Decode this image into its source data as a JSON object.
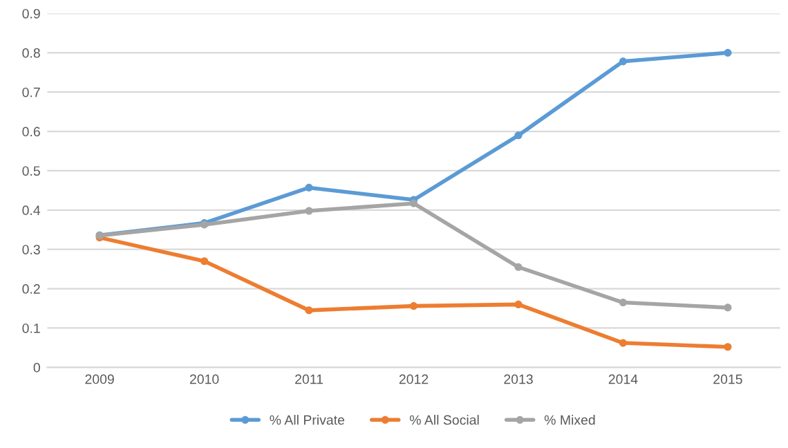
{
  "chart_data": {
    "type": "line",
    "categories": [
      "2009",
      "2010",
      "2011",
      "2012",
      "2013",
      "2014",
      "2015"
    ],
    "series": [
      {
        "name": "% All Private",
        "color": "#5b9bd5",
        "values": [
          0.336,
          0.367,
          0.457,
          0.426,
          0.59,
          0.778,
          0.8
        ]
      },
      {
        "name": "% All Social",
        "color": "#ed7d31",
        "values": [
          0.33,
          0.27,
          0.145,
          0.156,
          0.16,
          0.062,
          0.052
        ]
      },
      {
        "name": "% Mixed",
        "color": "#a5a5a5",
        "values": [
          0.335,
          0.363,
          0.398,
          0.417,
          0.255,
          0.165,
          0.152
        ]
      }
    ],
    "ylim": [
      0,
      0.9
    ],
    "yticks": [
      0,
      0.1,
      0.2,
      0.3,
      0.4,
      0.5,
      0.6,
      0.7,
      0.8,
      0.9
    ],
    "grid": "y",
    "legend": "bottom",
    "marker": "circle",
    "line_style": "solid"
  }
}
